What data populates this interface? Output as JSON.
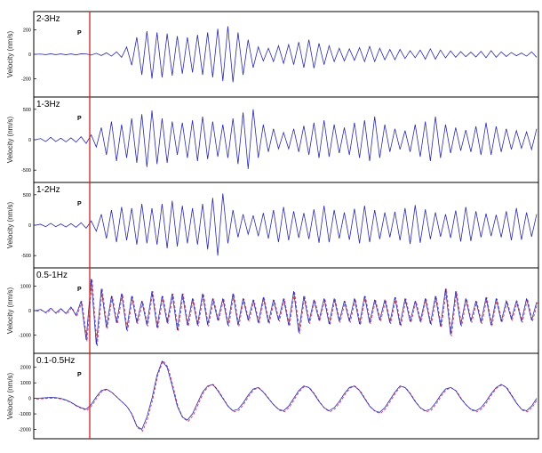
{
  "figure": {
    "panels": [
      {
        "band": "2-3Hz",
        "ylabel": "Velocity (nm/s)",
        "phase": "P",
        "yticks": [
          "200",
          "0",
          "-200"
        ]
      },
      {
        "band": "1-3Hz",
        "ylabel": "Velocity (nm/s)",
        "phase": "P",
        "yticks": [
          "500",
          "0",
          "-500"
        ]
      },
      {
        "band": "1-2Hz",
        "ylabel": "Velocity (nm/s)",
        "phase": "P",
        "yticks": [
          "500",
          "0",
          "-500"
        ]
      },
      {
        "band": "0.5-1Hz",
        "ylabel": "Velocity (nm/s)",
        "phase": "P",
        "yticks": [
          "1000",
          "0",
          "-1000"
        ]
      },
      {
        "band": "0.1-0.5Hz",
        "ylabel": "Velocity (nm/s)",
        "phase": "P",
        "yticks": [
          "2000",
          "1000",
          "0",
          "-1000",
          "-2000"
        ]
      }
    ]
  },
  "chart_data": [
    {
      "type": "line",
      "title": "2-3Hz",
      "ylabel": "Velocity (nm/s)",
      "yticks": [
        200,
        0,
        -200
      ],
      "ylim": [
        -300,
        300
      ],
      "annotations": [
        "P"
      ],
      "colors": {
        "trace": "#2a2aa8",
        "marker": "#d42020"
      },
      "series": [
        {
          "values": [
            0,
            2,
            -3,
            4,
            -3,
            3,
            -4,
            3,
            -5,
            4,
            3,
            -6,
            8,
            -10,
            12,
            -15,
            20,
            -25,
            60,
            -90,
            140,
            -170,
            190,
            -200,
            180,
            -190,
            170,
            -175,
            150,
            -160,
            140,
            -150,
            160,
            -170,
            180,
            -190,
            210,
            -220,
            230,
            -230,
            180,
            -170,
            120,
            -110,
            60,
            -55,
            50,
            -60,
            70,
            -75,
            80,
            -85,
            100,
            -110,
            120,
            -115,
            90,
            -85,
            70,
            -60,
            50,
            -55,
            45,
            -50,
            55,
            -60,
            65,
            -60,
            50,
            -45,
            40,
            -45,
            40,
            -35,
            30,
            -28,
            35,
            -40,
            45,
            -40,
            35,
            -30,
            28,
            -25,
            22,
            -20,
            18,
            -22,
            25,
            -28,
            30,
            -25,
            20,
            -18,
            15,
            -12,
            10,
            -15,
            20,
            -25
          ]
        }
      ]
    },
    {
      "type": "line",
      "title": "1-3Hz",
      "ylabel": "Velocity (nm/s)",
      "yticks": [
        500,
        0,
        -500
      ],
      "ylim": [
        -600,
        600
      ],
      "annotations": [
        "P"
      ],
      "colors": {
        "trace": "#2a2aa8",
        "marker": "#d42020"
      },
      "series": [
        {
          "values": [
            0,
            20,
            -30,
            40,
            -30,
            25,
            -35,
            30,
            -40,
            50,
            -60,
            80,
            -120,
            200,
            -250,
            300,
            -350,
            250,
            -300,
            350,
            -380,
            420,
            -450,
            480,
            -400,
            350,
            -380,
            300,
            -250,
            280,
            -300,
            320,
            -350,
            380,
            -320,
            300,
            -280,
            250,
            -300,
            350,
            -400,
            450,
            -480,
            500,
            -300,
            250,
            -200,
            180,
            -150,
            120,
            -150,
            180,
            -200,
            230,
            -250,
            280,
            -300,
            320,
            -280,
            250,
            -220,
            200,
            -250,
            280,
            -300,
            320,
            -350,
            380,
            -300,
            250,
            -200,
            180,
            -160,
            150,
            -200,
            250,
            -280,
            300,
            -350,
            380,
            -300,
            250,
            -220,
            200,
            -180,
            160,
            -200,
            220,
            -250,
            280,
            -250,
            220,
            -200,
            180,
            -160,
            150,
            -140,
            130,
            -160,
            180
          ]
        }
      ]
    },
    {
      "type": "line",
      "title": "1-2Hz",
      "ylabel": "Velocity (nm/s)",
      "yticks": [
        500,
        0,
        -500
      ],
      "ylim": [
        -600,
        600
      ],
      "annotations": [
        "P"
      ],
      "colors": {
        "trace": "#2a2aa8",
        "marker": "#d42020"
      },
      "series": [
        {
          "values": [
            0,
            15,
            -25,
            30,
            -25,
            20,
            -30,
            25,
            -35,
            40,
            -50,
            70,
            -100,
            180,
            -220,
            250,
            -280,
            300,
            -250,
            280,
            -320,
            350,
            -300,
            280,
            -320,
            350,
            -380,
            400,
            -350,
            320,
            -300,
            280,
            -320,
            350,
            -400,
            450,
            -500,
            520,
            -300,
            250,
            -200,
            180,
            -150,
            160,
            -180,
            200,
            -220,
            250,
            -280,
            300,
            -250,
            230,
            -210,
            200,
            -230,
            260,
            -290,
            320,
            -280,
            250,
            -220,
            210,
            -240,
            270,
            -300,
            320,
            -280,
            250,
            -230,
            210,
            -200,
            220,
            -250,
            280,
            -310,
            330,
            -290,
            260,
            -230,
            210,
            -190,
            180,
            -210,
            240,
            -270,
            300,
            -260,
            230,
            -200,
            190,
            -180,
            170,
            -200,
            230,
            -250,
            280,
            -240,
            210,
            -190,
            180
          ]
        }
      ]
    },
    {
      "type": "line",
      "title": "0.5-1Hz",
      "ylabel": "Velocity (nm/s)",
      "yticks": [
        1000,
        0,
        -1000
      ],
      "ylim": [
        -1500,
        1500
      ],
      "annotations": [
        "P"
      ],
      "colors": {
        "trace": "#2a2aa8",
        "overlay": "#c03060",
        "marker": "#d42020"
      },
      "series": [
        {
          "values": [
            0,
            50,
            -80,
            100,
            -100,
            80,
            -120,
            150,
            -200,
            400,
            -1200,
            1300,
            -1400,
            900,
            -700,
            600,
            -500,
            700,
            -800,
            600,
            -500,
            400,
            -600,
            800,
            -700,
            600,
            -500,
            700,
            -800,
            700,
            -600,
            500,
            -600,
            700,
            -600,
            500,
            -400,
            500,
            -600,
            700,
            -600,
            500,
            -400,
            450,
            -500,
            550,
            -500,
            450,
            -400,
            500,
            -600,
            800,
            -900,
            600,
            -500,
            450,
            -400,
            500,
            -550,
            500,
            -450,
            400,
            -450,
            500,
            -550,
            600,
            -500,
            450,
            -400,
            450,
            -500,
            550,
            -600,
            500,
            -450,
            400,
            -450,
            500,
            -550,
            600,
            -650,
            900,
            -1000,
            800,
            -600,
            500,
            -450,
            400,
            -500,
            550,
            -600,
            500,
            -450,
            400,
            -350,
            400,
            -450,
            500,
            -400,
            350
          ]
        }
      ]
    },
    {
      "type": "line",
      "title": "0.1-0.5Hz",
      "ylabel": "Velocity (nm/s)",
      "yticks": [
        2000,
        1000,
        0,
        -1000,
        -2000
      ],
      "ylim": [
        -2200,
        2500
      ],
      "annotations": [
        "P"
      ],
      "colors": {
        "trace": "#2a2aa8",
        "overlay": "#c03060",
        "marker": "#d42020"
      },
      "series": [
        {
          "values": [
            0,
            20,
            40,
            60,
            50,
            0,
            -100,
            -250,
            -450,
            -600,
            -700,
            -400,
            100,
            500,
            600,
            400,
            100,
            -200,
            -500,
            -1000,
            -1800,
            -2000,
            -1200,
            0,
            1500,
            2400,
            2000,
            800,
            -500,
            -1200,
            -1400,
            -1000,
            -300,
            400,
            800,
            900,
            500,
            0,
            -500,
            -800,
            -700,
            -300,
            200,
            600,
            700,
            400,
            0,
            -400,
            -700,
            -800,
            -500,
            0,
            500,
            800,
            700,
            300,
            -200,
            -600,
            -800,
            -600,
            -200,
            300,
            700,
            800,
            500,
            0,
            -500,
            -800,
            -900,
            -600,
            -100,
            400,
            800,
            700,
            300,
            -200,
            -600,
            -800,
            -700,
            -300,
            200,
            600,
            700,
            500,
            0,
            -400,
            -700,
            -800,
            -600,
            -200,
            300,
            700,
            900,
            700,
            200,
            -300,
            -700,
            -800,
            -500,
            0
          ]
        }
      ]
    }
  ]
}
